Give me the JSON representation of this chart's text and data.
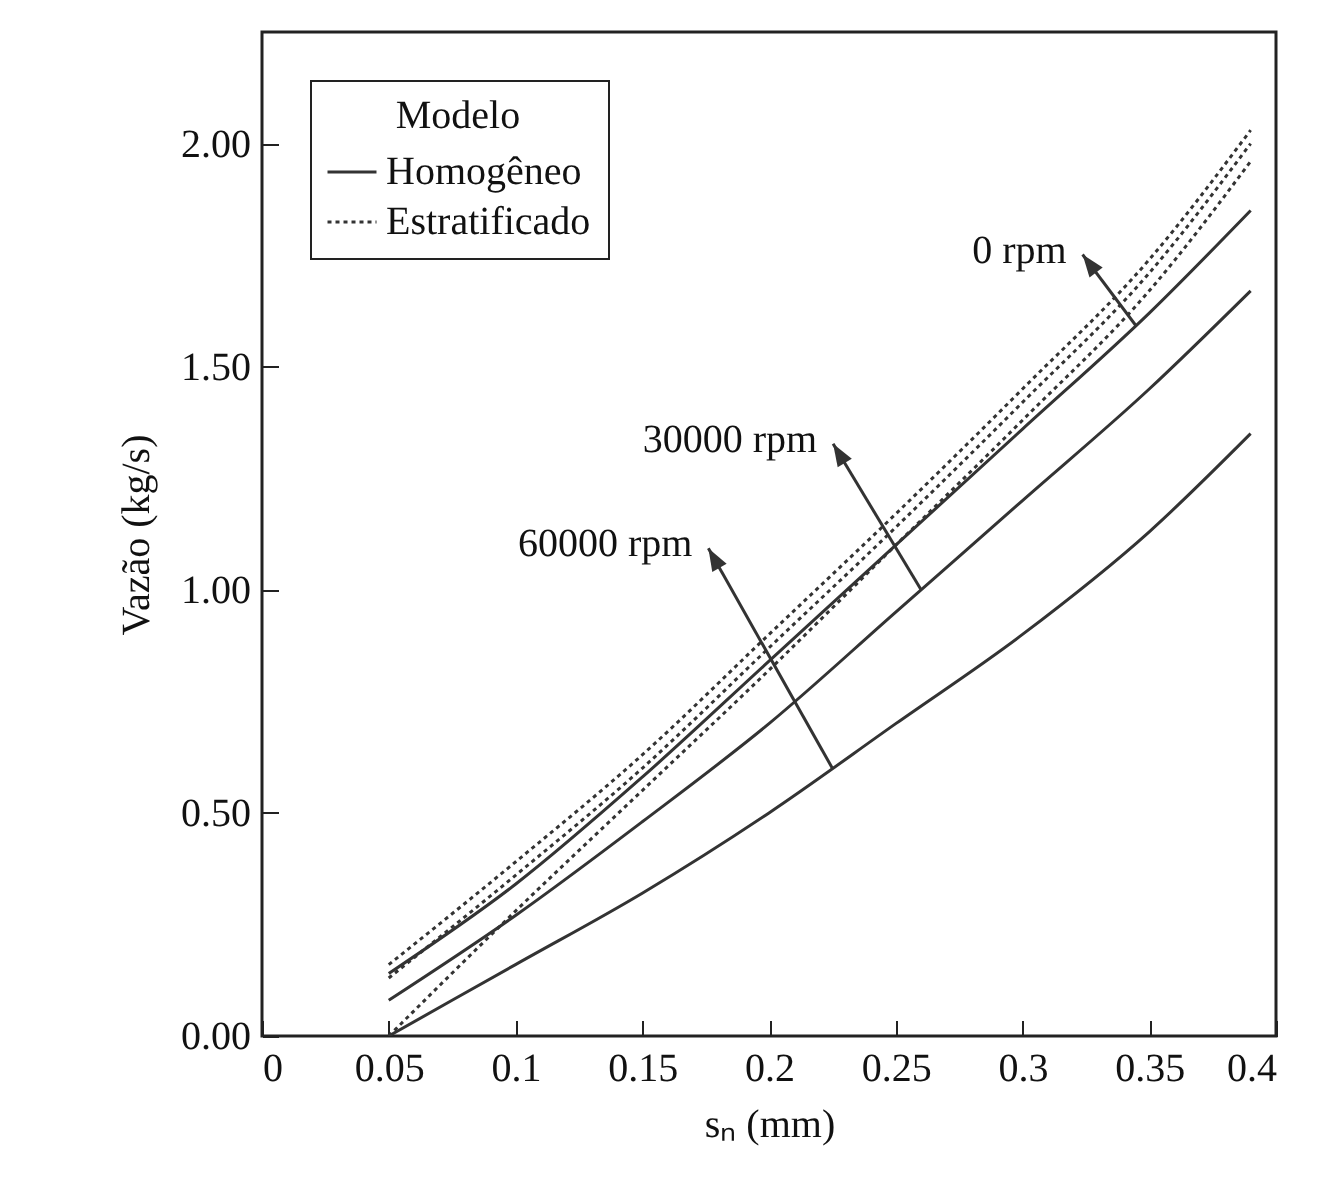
{
  "chart_data": {
    "type": "line",
    "xlabel": "sₙ (mm)",
    "ylabel": "Vazão (kg/s)",
    "legend_title": "Modelo",
    "legend": "top left",
    "grid": false,
    "x": [
      0.05,
      0.1,
      0.15,
      0.2,
      0.25,
      0.3,
      0.35,
      0.39
    ],
    "series": [
      {
        "name": "Homogêneo",
        "color": "#333333",
        "line_style": "solid",
        "values": [
          0.14,
          0.34,
          0.58,
          0.84,
          1.1,
          1.36,
          1.62,
          1.85
        ]
      },
      {
        "color": "#333333",
        "line_style": "solid",
        "values": [
          0.08,
          0.27,
          0.48,
          0.7,
          0.95,
          1.2,
          1.45,
          1.67
        ]
      },
      {
        "color": "#333333",
        "line_style": "solid",
        "values": [
          0.0,
          0.16,
          0.32,
          0.5,
          0.7,
          0.9,
          1.13,
          1.35
        ]
      },
      {
        "name": "Estratificado",
        "color": "#333333",
        "line_style": "dotted",
        "values": [
          0.16,
          0.39,
          0.63,
          0.9,
          1.17,
          1.45,
          1.74,
          2.03
        ]
      },
      {
        "color": "#333333",
        "line_style": "dotted",
        "values": [
          0.13,
          0.36,
          0.6,
          0.87,
          1.14,
          1.42,
          1.71,
          2.0
        ]
      },
      {
        "color": "#333333",
        "line_style": "dotted",
        "values": [
          0.0,
          0.28,
          0.55,
          0.82,
          1.1,
          1.38,
          1.67,
          1.96
        ]
      }
    ],
    "annotations": [
      {
        "text": "0 rpm",
        "x": 0.345,
        "y": 1.59
      },
      {
        "text": "30000 rpm",
        "x": 0.26,
        "y": 1.0
      },
      {
        "text": "60000 rpm",
        "x": 0.225,
        "y": 0.6
      }
    ],
    "xlim": [
      0,
      0.4
    ],
    "xticks": [
      0,
      0.05,
      0.1,
      0.15,
      0.2,
      0.25,
      0.3,
      0.35,
      0.4
    ],
    "ylim": [
      0,
      2.25
    ],
    "yticks": [
      {
        "value": 0,
        "label": "0.00"
      },
      {
        "value": 0.5,
        "label": "0.50"
      },
      {
        "value": 1,
        "label": "1.00"
      },
      {
        "value": 1.5,
        "label": "1.50"
      },
      {
        "value": 2,
        "label": "2.00"
      }
    ]
  }
}
